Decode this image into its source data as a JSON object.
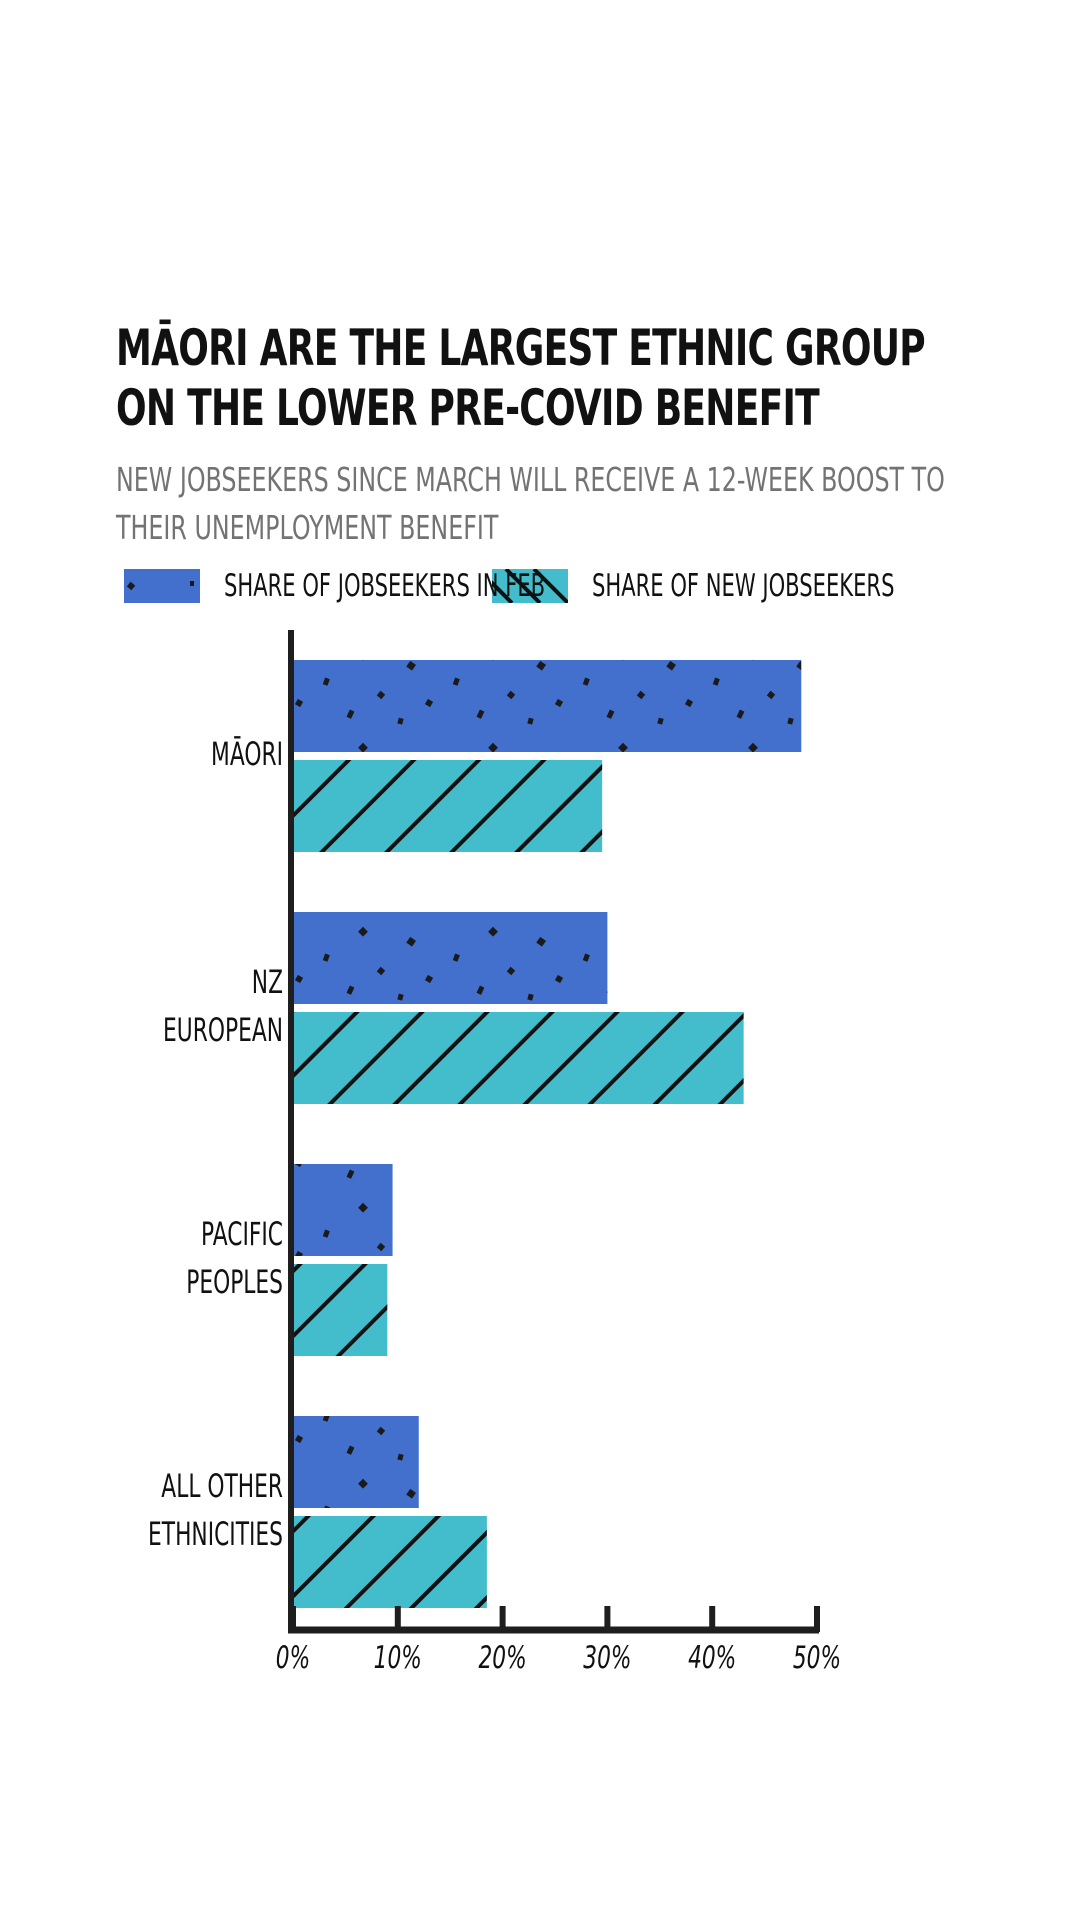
{
  "chart_data": {
    "type": "bar",
    "orientation": "horizontal",
    "title": "Māori are the largest ethnic group on the lower pre-Covid benefit",
    "subtitle": "New jobseekers since March will receive a 12-week boost to their unemployment benefit",
    "categories": [
      "Māori",
      "NZ European",
      "Pacific Peoples",
      "All other ethnicities"
    ],
    "category_lines": [
      [
        "Māori"
      ],
      [
        "NZ",
        "European"
      ],
      [
        "Pacific",
        "Peoples"
      ],
      [
        "All other",
        "ethnicities"
      ]
    ],
    "series": [
      {
        "name": "Share of jobseekers in Feb",
        "values": [
          48.5,
          30,
          9.5,
          12
        ],
        "color": "#4370cc",
        "pattern": "dots"
      },
      {
        "name": "Share of new jobseekers",
        "values": [
          29.5,
          43,
          9,
          18.5
        ],
        "color": "#43bccc",
        "pattern": "diagonal-hatch"
      }
    ],
    "xlim": [
      0,
      50
    ],
    "xticks": [
      0,
      10,
      20,
      30,
      40,
      50
    ],
    "xtick_labels": [
      "0%",
      "10%",
      "20%",
      "30%",
      "40%",
      "50%"
    ],
    "xlabel": "",
    "ylabel": "",
    "grid": false,
    "legend_position": "top"
  }
}
